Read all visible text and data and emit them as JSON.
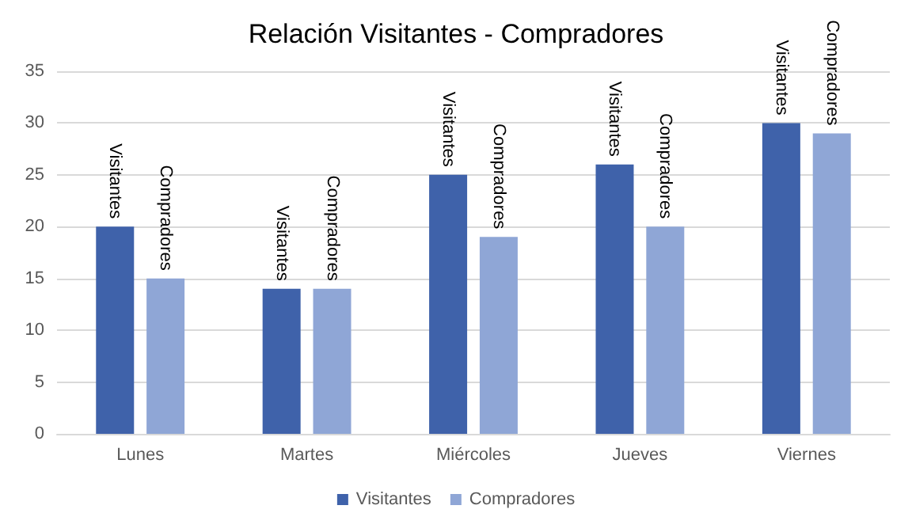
{
  "chart_data": {
    "type": "bar",
    "title": "Relación Visitantes - Compradores",
    "categories": [
      "Lunes",
      "Martes",
      "Miércoles",
      "Jueves",
      "Viernes"
    ],
    "series": [
      {
        "name": "Visitantes",
        "color": "#3f62aa",
        "values": [
          20,
          14,
          25,
          26,
          30
        ],
        "value_labels": [
          "Visitantes",
          "Visitantes",
          "Visitantes",
          "Visitantes",
          "Visitantes"
        ]
      },
      {
        "name": "Compradores",
        "color": "#8fa6d6",
        "values": [
          15,
          14,
          19,
          20,
          29
        ],
        "value_labels": [
          "Compradores",
          "Compradores",
          "Compradores",
          "Compradores",
          "Compradores"
        ]
      }
    ],
    "ylim": [
      0,
      35
    ],
    "yticks": [
      0,
      5,
      10,
      15,
      20,
      25,
      30,
      35
    ],
    "grid": "y",
    "legend": "bottom"
  }
}
